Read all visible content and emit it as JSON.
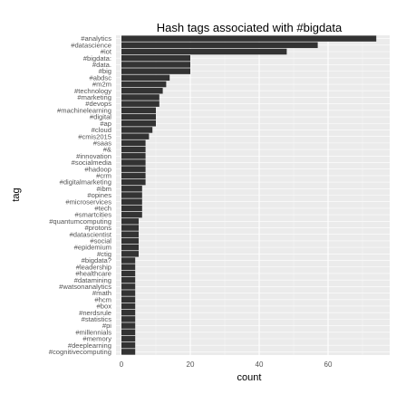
{
  "chart_data": {
    "type": "bar",
    "orientation": "horizontal",
    "title": "Hash tags associated with #bigdata",
    "xlabel": "count",
    "ylabel": "tag",
    "xlim": [
      0,
      77
    ],
    "xticks": [
      0,
      20,
      40,
      60
    ],
    "grid": true,
    "colors": {
      "panel": "#ebebeb",
      "grid_major": "#ffffff",
      "grid_minor": "#f3f3f3",
      "bar": "#333333"
    },
    "categories": [
      "#analytics",
      "#datascience",
      "#iot",
      "#bigdata:",
      "#data.",
      "#big",
      "#abdsc",
      "#m2m",
      "#technology",
      "#marketing",
      "#devops",
      "#machinelearning",
      "#digital",
      "#ap",
      "#cloud",
      "#cmis2015",
      "#saas",
      "#&",
      "#innovation",
      "#socialmedia",
      "#hadoop",
      "#crm",
      "#digitalmarketing",
      "#ibm",
      "#opines",
      "#microservices",
      "#tech",
      "#smartcities",
      "#quantumcomputing",
      "#protons",
      "#datascientist",
      "#social",
      "#epidemium",
      "#ctig",
      "#bigdata?",
      "#leadership",
      "#healthcare",
      "#datamining",
      "#watsonanalytics",
      "#math",
      "#hcm",
      "#box",
      "#nerdsrule",
      "#statistics",
      "#pi",
      "#millennials",
      "#memory",
      "#deeplearning",
      "#cognitivecomputing"
    ],
    "values": [
      74,
      57,
      48,
      20,
      20,
      20,
      14,
      13,
      12,
      11,
      11,
      10,
      10,
      10,
      9,
      8,
      7,
      7,
      7,
      7,
      7,
      7,
      7,
      6,
      6,
      6,
      6,
      6,
      5,
      5,
      5,
      5,
      5,
      5,
      4,
      4,
      4,
      4,
      4,
      4,
      4,
      4,
      4,
      4,
      4,
      4,
      4,
      4,
      4
    ]
  }
}
